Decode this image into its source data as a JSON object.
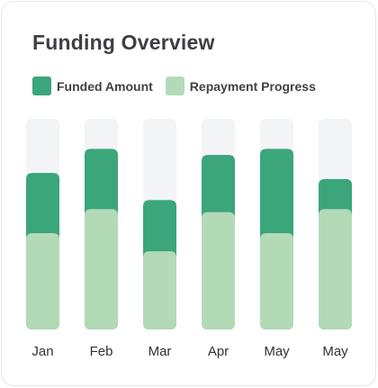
{
  "title": "Funding Overview",
  "legend": [
    {
      "label": "Funded Amount",
      "color": "#3ba57b"
    },
    {
      "label": "Repayment Progress",
      "color": "#b3dab7"
    }
  ],
  "colors": {
    "track": "#f3f4f6"
  },
  "chart_data": {
    "type": "bar",
    "stacked": true,
    "categories": [
      "Jan",
      "Feb",
      "Mar",
      "Apr",
      "May",
      "May"
    ],
    "series": [
      {
        "name": "Repayment Progress",
        "values": [
          32,
          40,
          26,
          39,
          32,
          40
        ]
      },
      {
        "name": "Funded Amount",
        "values": [
          20,
          20,
          17,
          19,
          28,
          10
        ]
      }
    ],
    "ylim": [
      0,
      70
    ],
    "grid": false,
    "legend_position": "top-left",
    "xlabel": "",
    "ylabel": ""
  }
}
